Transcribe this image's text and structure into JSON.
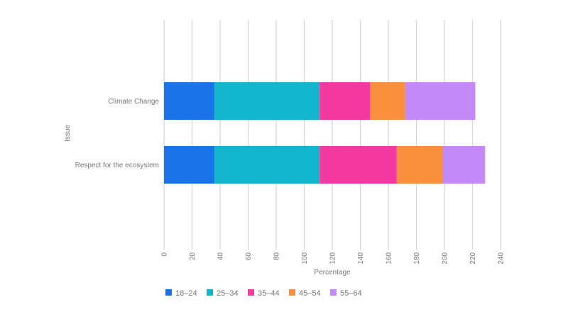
{
  "chart_data": {
    "type": "bar",
    "orientation": "horizontal",
    "stacked": true,
    "xlabel": "Percentage",
    "ylabel": "Issue",
    "xlim": [
      0,
      240
    ],
    "xticks": [
      "0",
      "20",
      "40",
      "60",
      "80",
      "100",
      "120",
      "140",
      "160",
      "180",
      "200",
      "220",
      "240"
    ],
    "grid": true,
    "legend_position": "bottom",
    "categories": [
      "Climate Change",
      "Respect for the ecosystem"
    ],
    "series": [
      {
        "name": "18–24",
        "color": "#1a73e8",
        "values": [
          36,
          36
        ]
      },
      {
        "name": "25–34",
        "color": "#12b5cb",
        "values": [
          75,
          75
        ]
      },
      {
        "name": "35–44",
        "color": "#f439a0",
        "values": [
          36,
          55
        ]
      },
      {
        "name": "45–54",
        "color": "#fa903e",
        "values": [
          25,
          33
        ]
      },
      {
        "name": "55–64",
        "color": "#c58af9",
        "values": [
          50,
          30
        ]
      }
    ]
  }
}
